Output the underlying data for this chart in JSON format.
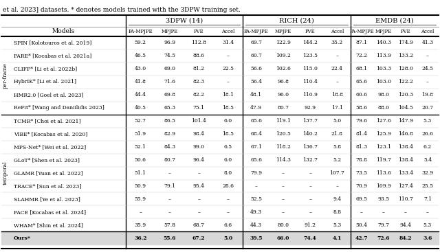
{
  "title_text": "et al. 2023] datasets. * denotes models trained with the 3DPW training set.",
  "group_headers": [
    "3DPW (14)",
    "RICH (24)",
    "EMDB (24)"
  ],
  "col_headers": [
    "PA-MPJPE",
    "MPJPE",
    "PVE",
    "Accel"
  ],
  "models_col_label": "Models",
  "row_group1_label": "per-frame",
  "row_group2_label": "temporal",
  "per_frame_models": [
    "SPIN [Kolotouros et al. 2019]",
    "PARE* [Kocabas et al. 2021a]",
    "CLIFF* [Li et al. 2022b]",
    "HybrIK* [Li et al. 2021]",
    "HMR2.0 [Goel et al. 2023]",
    "ReFit* [Wang and Daniilidis 2023]"
  ],
  "temporal_models": [
    "TCMR* [Choi et al. 2021]",
    "VIBE* [Kocabas et al. 2020]",
    "MPS-Net* [Wei et al. 2022]",
    "GLoT* [Shen et al. 2023]",
    "GLAMR [Yuan et al. 2022]",
    "TRACE* [Sun et al. 2023]",
    "SLAHMR [Ye et al. 2023]",
    "PACE [Kocabas et al. 2024]",
    "WHAM* [Shin et al. 2024]"
  ],
  "ours_model": "Ours*",
  "per_frame_data": [
    [
      "59.2",
      "96.9",
      "112.8",
      "31.4",
      "69.7",
      "122.9",
      "144.2",
      "35.2",
      "87.1",
      "140.3",
      "174.9",
      "41.3"
    ],
    [
      "46.5",
      "74.5",
      "88.6",
      "–",
      "60.7",
      "109.2",
      "123.5",
      "–",
      "72.2",
      "113.9",
      "133.2",
      "–"
    ],
    [
      "43.0",
      "69.0",
      "81.2",
      "22.5",
      "56.6",
      "102.6",
      "115.0",
      "22.4",
      "68.1",
      "103.3",
      "128.0",
      "24.5"
    ],
    [
      "41.8",
      "71.6",
      "82.3",
      "–",
      "56.4",
      "96.8",
      "110.4",
      "–",
      "65.6",
      "103.0",
      "122.2",
      "–"
    ],
    [
      "44.4",
      "69.8",
      "82.2",
      "18.1",
      "48.1",
      "96.0",
      "110.9",
      "18.8",
      "60.6",
      "98.0",
      "120.3",
      "19.8"
    ],
    [
      "40.5",
      "65.3",
      "75.1",
      "18.5",
      "47.9",
      "80.7",
      "92.9",
      "17.1",
      "58.6",
      "88.0",
      "104.5",
      "20.7"
    ]
  ],
  "temporal_data": [
    [
      "52.7",
      "86.5",
      "101.4",
      "6.0",
      "65.6",
      "119.1",
      "137.7",
      "5.0",
      "79.6",
      "127.6",
      "147.9",
      "5.3"
    ],
    [
      "51.9",
      "82.9",
      "98.4",
      "18.5",
      "68.4",
      "120.5",
      "140.2",
      "21.8",
      "81.4",
      "125.9",
      "146.8",
      "26.6"
    ],
    [
      "52.1",
      "84.3",
      "99.0",
      "6.5",
      "67.1",
      "118.2",
      "136.7",
      "5.8",
      "81.3",
      "123.1",
      "138.4",
      "6.2"
    ],
    [
      "50.6",
      "80.7",
      "96.4",
      "6.0",
      "65.6",
      "114.3",
      "132.7",
      "5.2",
      "78.8",
      "119.7",
      "138.4",
      "5.4"
    ],
    [
      "51.1",
      "–",
      "–",
      "8.0",
      "79.9",
      "–",
      "–",
      "107.7",
      "73.5",
      "113.6",
      "133.4",
      "32.9"
    ],
    [
      "50.9",
      "79.1",
      "95.4",
      "28.6",
      "–",
      "–",
      "–",
      "–",
      "70.9",
      "109.9",
      "127.4",
      "25.5"
    ],
    [
      "55.9",
      "–",
      "–",
      "–",
      "52.5",
      "–",
      "–",
      "9.4",
      "69.5",
      "93.5",
      "110.7",
      "7.1"
    ],
    [
      "–",
      "–",
      "–",
      "–",
      "49.3",
      "–",
      "–",
      "8.8",
      "–",
      "–",
      "–",
      "–"
    ],
    [
      "35.9",
      "57.8",
      "68.7",
      "6.6",
      "44.3",
      "80.0",
      "91.2",
      "5.3",
      "50.4",
      "79.7",
      "94.4",
      "5.3"
    ]
  ],
  "ours_data": [
    "36.2",
    "55.6",
    "67.2",
    "5.0",
    "39.5",
    "66.0",
    "74.4",
    "4.1",
    "42.7",
    "72.6",
    "84.2",
    "3.6"
  ],
  "bg_color": "#ffffff",
  "thick_line_color": "#000000",
  "thin_line_color": "#888888",
  "text_color": "#000000",
  "ours_bg": "#d8d8d8"
}
